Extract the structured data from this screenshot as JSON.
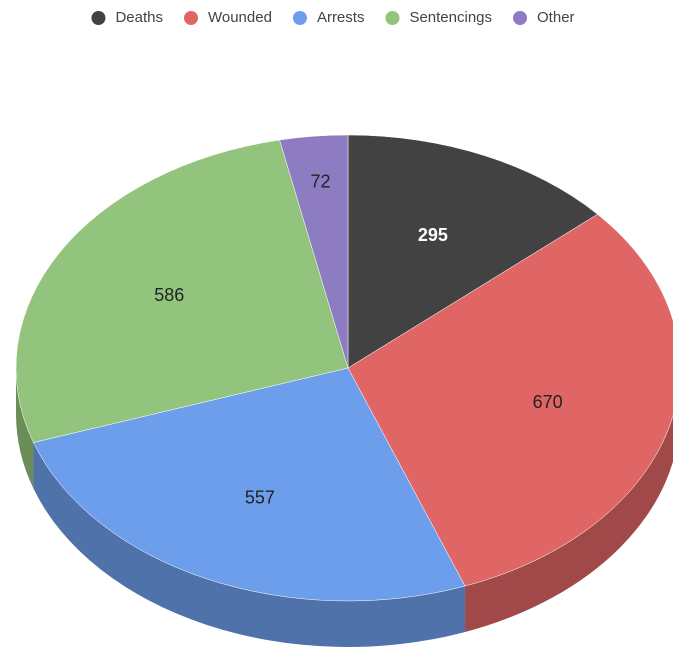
{
  "chart_data": {
    "type": "pie",
    "three_d": true,
    "categories": [
      "Deaths",
      "Wounded",
      "Arrests",
      "Sentencings",
      "Other"
    ],
    "values": [
      295,
      670,
      557,
      586,
      72
    ],
    "colors": [
      "#424242",
      "#e06666",
      "#6d9eeb",
      "#93c47d",
      "#8e7cc3"
    ],
    "legend": "top"
  }
}
